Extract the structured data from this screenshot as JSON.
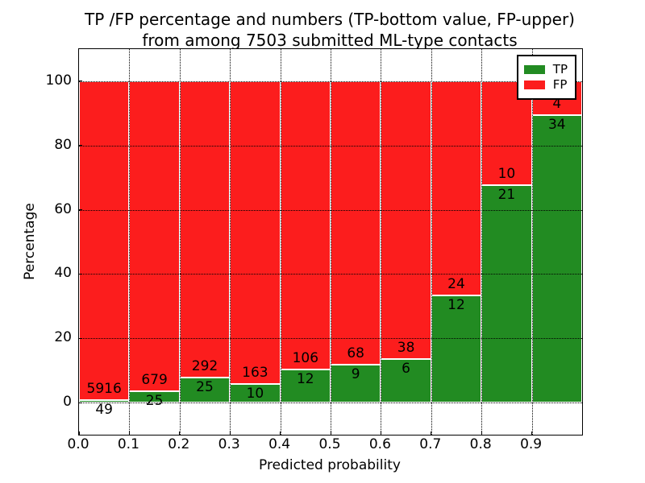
{
  "figure": {
    "title_line1": "TP /FP percentage and numbers (TP-bottom value, FP-upper)",
    "title_line2": "from among 7503 submitted ML-type contacts"
  },
  "axes": {
    "xlabel": "Predicted probability",
    "ylabel": "Percentage",
    "x_tick_labels": [
      "0.0",
      "0.1",
      "0.2",
      "0.3",
      "0.4",
      "0.5",
      "0.6",
      "0.7",
      "0.8",
      "0.9"
    ],
    "x_tick_values": [
      0.0,
      0.1,
      0.2,
      0.3,
      0.4,
      0.5,
      0.6,
      0.7,
      0.8,
      0.9
    ],
    "y_tick_labels": [
      "0",
      "20",
      "40",
      "60",
      "80",
      "100"
    ],
    "y_tick_values": [
      0,
      20,
      40,
      60,
      80,
      100
    ],
    "xlim": [
      0.0,
      1.0
    ],
    "ylim": [
      -10,
      110
    ]
  },
  "legend": {
    "position": "upper right",
    "items": [
      {
        "label": "TP",
        "color": "#228b22"
      },
      {
        "label": "FP",
        "color": "#fc1d1d"
      }
    ]
  },
  "colors": {
    "tp_green": "#228b22",
    "fp_red": "#fc1d1d",
    "grid": "#000000",
    "background": "#ffffff"
  },
  "chart_data": {
    "type": "bar",
    "subtype": "stacked-100-percent",
    "title": "TP /FP percentage and numbers (TP-bottom value, FP-upper) from among 7503 submitted ML-type contacts",
    "xlabel": "Predicted probability",
    "ylabel": "Percentage",
    "total_contacts": 7503,
    "grid": true,
    "gridline_style": "dotted",
    "legend_position": "upper right",
    "xlim": [
      0.0,
      1.0
    ],
    "ylim": [
      -10,
      110
    ],
    "bin_edges": [
      0.0,
      0.1,
      0.2,
      0.3,
      0.4,
      0.5,
      0.6,
      0.7,
      0.8,
      0.9,
      1.0
    ],
    "categories": [
      "0.0-0.1",
      "0.1-0.2",
      "0.2-0.3",
      "0.3-0.4",
      "0.4-0.5",
      "0.5-0.6",
      "0.6-0.7",
      "0.7-0.8",
      "0.8-0.9",
      "0.9-1.0"
    ],
    "series": [
      {
        "name": "TP",
        "color": "#228b22",
        "counts": [
          49,
          25,
          25,
          10,
          12,
          9,
          6,
          12,
          21,
          34
        ],
        "percent": [
          0.82,
          3.55,
          7.89,
          5.78,
          10.17,
          11.69,
          13.64,
          33.33,
          67.74,
          89.47
        ]
      },
      {
        "name": "FP",
        "color": "#fc1d1d",
        "counts": [
          5916,
          679,
          292,
          163,
          106,
          68,
          38,
          24,
          10,
          4
        ],
        "percent": [
          99.18,
          96.45,
          92.11,
          94.22,
          89.83,
          88.31,
          86.36,
          66.67,
          32.26,
          10.53
        ]
      }
    ]
  }
}
